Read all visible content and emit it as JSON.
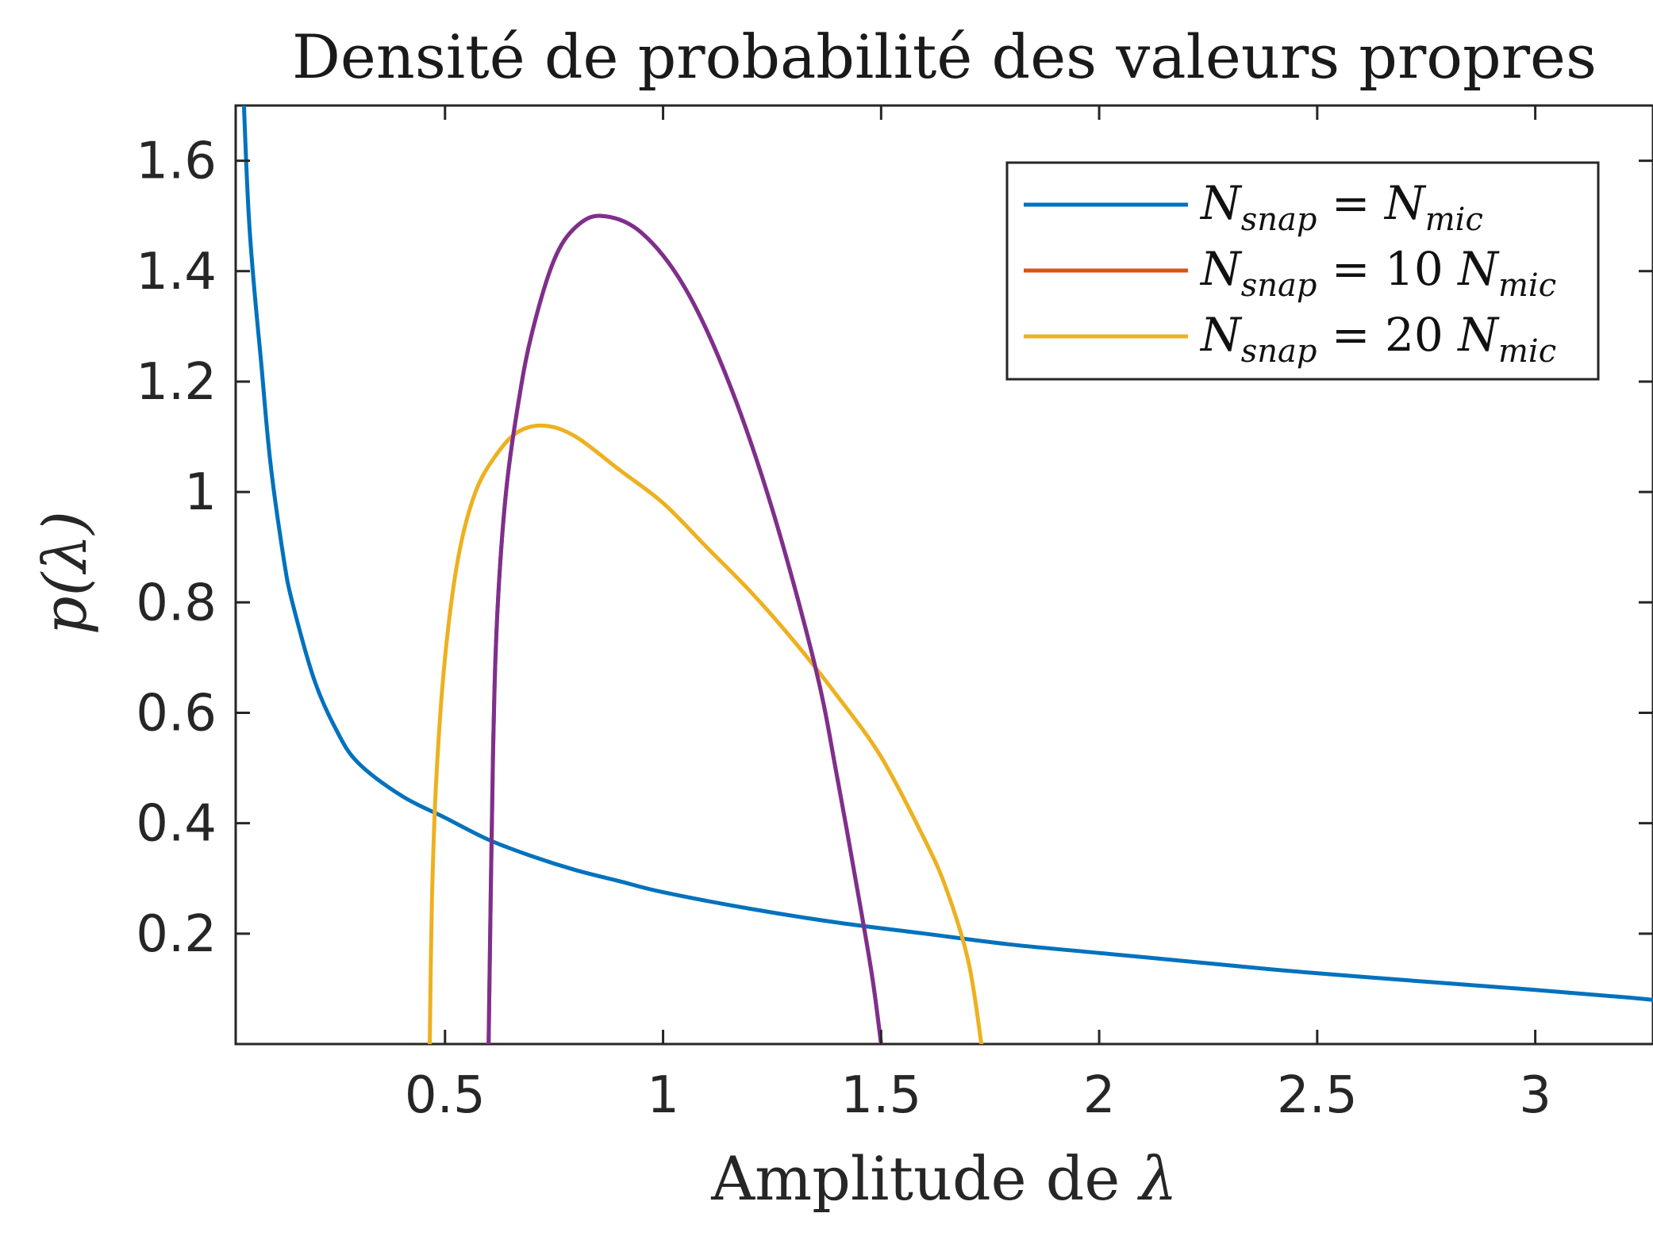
{
  "chart_data": {
    "type": "line",
    "title": "Densité de probabilité des valeurs propres",
    "xlabel_prefix": "Amplitude de ",
    "xlabel_symbol": "λ",
    "ylabel": "p(λ)",
    "xlim": [
      0.02,
      3.27
    ],
    "ylim": [
      0.0,
      1.7
    ],
    "xticks": [
      0.5,
      1,
      1.5,
      2,
      2.5,
      3
    ],
    "xtick_labels": [
      "0.5",
      "1",
      "1.5",
      "2",
      "2.5",
      "3"
    ],
    "yticks": [
      0.2,
      0.4,
      0.6,
      0.8,
      1.0,
      1.2,
      1.4,
      1.6
    ],
    "ytick_labels": [
      "0.2",
      "0.4",
      "0.6",
      "0.8",
      "1",
      "1.2",
      "1.4",
      "1.6"
    ],
    "grid": false,
    "legend_position": "top-right",
    "series": [
      {
        "name": "N_snap = N_mic",
        "legend": {
          "base": "N",
          "sub": "snap",
          "eq": " = ",
          "coef": "",
          "base2": "N",
          "sub2": "mic"
        },
        "color": "#0072BD",
        "x": [
          0.03,
          0.05,
          0.08,
          0.1,
          0.13,
          0.15,
          0.2,
          0.25,
          0.3,
          0.4,
          0.5,
          0.6,
          0.7,
          0.8,
          0.9,
          1.0,
          1.2,
          1.4,
          1.6,
          1.8,
          2.0,
          2.2,
          2.4,
          2.6,
          2.8,
          3.0,
          3.2,
          3.27
        ],
        "y": [
          1.9,
          1.5,
          1.22,
          1.05,
          0.88,
          0.8,
          0.66,
          0.57,
          0.51,
          0.45,
          0.41,
          0.37,
          0.34,
          0.315,
          0.295,
          0.275,
          0.245,
          0.22,
          0.2,
          0.18,
          0.165,
          0.15,
          0.135,
          0.122,
          0.11,
          0.098,
          0.085,
          0.08
        ]
      },
      {
        "name": "N_snap = 10 N_mic",
        "legend": {
          "base": "N",
          "sub": "snap",
          "eq": " = ",
          "coef": "10 ",
          "base2": "N",
          "sub2": "mic"
        },
        "color": "#D95319",
        "x": [
          0.6,
          0.61,
          0.62,
          0.64,
          0.67,
          0.7,
          0.75,
          0.8,
          0.86,
          0.95,
          1.05,
          1.15,
          1.25,
          1.35,
          1.4,
          1.45,
          1.48,
          1.5
        ],
        "y": [
          0.0,
          0.52,
          0.78,
          1.0,
          1.17,
          1.29,
          1.42,
          1.48,
          1.5,
          1.47,
          1.37,
          1.2,
          0.97,
          0.68,
          0.48,
          0.26,
          0.12,
          0.0
        ]
      },
      {
        "name": "N_snap = 20 N_mic",
        "legend": {
          "base": "N",
          "sub": "snap",
          "eq": " = ",
          "coef": "20 ",
          "base2": "N",
          "sub2": "mic"
        },
        "color": "#EDB120",
        "x": [
          0.465,
          0.47,
          0.48,
          0.5,
          0.53,
          0.57,
          0.62,
          0.67,
          0.73,
          0.8,
          0.9,
          1.0,
          1.1,
          1.2,
          1.3,
          1.4,
          1.5,
          1.6,
          1.65,
          1.7,
          1.73
        ],
        "y": [
          0.0,
          0.26,
          0.48,
          0.7,
          0.88,
          1.0,
          1.07,
          1.11,
          1.12,
          1.1,
          1.04,
          0.98,
          0.9,
          0.82,
          0.73,
          0.63,
          0.52,
          0.37,
          0.28,
          0.15,
          0.0
        ]
      },
      {
        "name": "",
        "color": "#7E2F8E",
        "x": [
          0.6,
          0.61,
          0.62,
          0.64,
          0.67,
          0.7,
          0.75,
          0.8,
          0.86,
          0.95,
          1.05,
          1.15,
          1.25,
          1.35,
          1.4,
          1.45,
          1.48,
          1.5
        ],
        "y": [
          0.0,
          0.52,
          0.78,
          1.0,
          1.17,
          1.29,
          1.42,
          1.48,
          1.5,
          1.47,
          1.37,
          1.2,
          0.97,
          0.68,
          0.48,
          0.26,
          0.12,
          0.0
        ]
      }
    ]
  }
}
